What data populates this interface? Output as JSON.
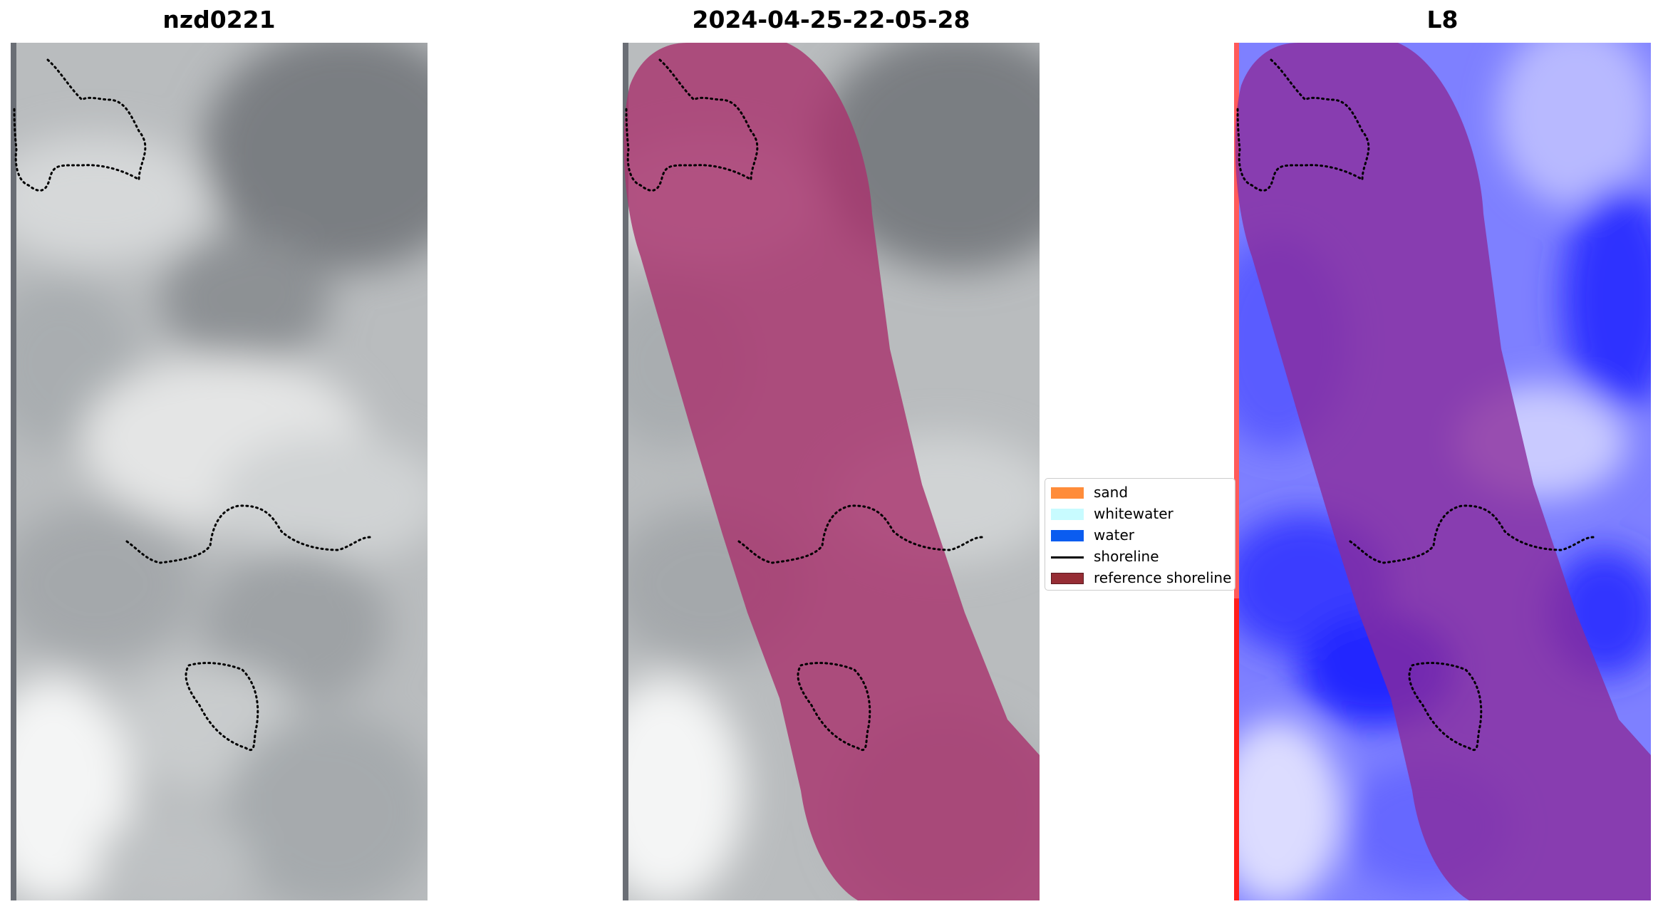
{
  "panels": [
    {
      "title": "nzd0221",
      "variant": "gray"
    },
    {
      "title": "2024-04-25-22-05-28",
      "variant": "classified"
    },
    {
      "title": "L8",
      "variant": "index"
    }
  ],
  "legend": {
    "items": [
      {
        "label": "sand",
        "color": "#ff8c3a",
        "kind": "patch"
      },
      {
        "label": "whitewater",
        "color": "#c8fbff",
        "kind": "patch"
      },
      {
        "label": "water",
        "color": "#0a5cf0",
        "kind": "patch"
      },
      {
        "label": "shoreline",
        "color": "#000000",
        "kind": "line"
      },
      {
        "label": "reference shoreline",
        "color": "#962d35",
        "kind": "patch"
      }
    ]
  },
  "colors": {
    "buffer_overlay": "#a8336e",
    "index_blue": "#2a2cff",
    "edge_red": "#ff2020"
  }
}
